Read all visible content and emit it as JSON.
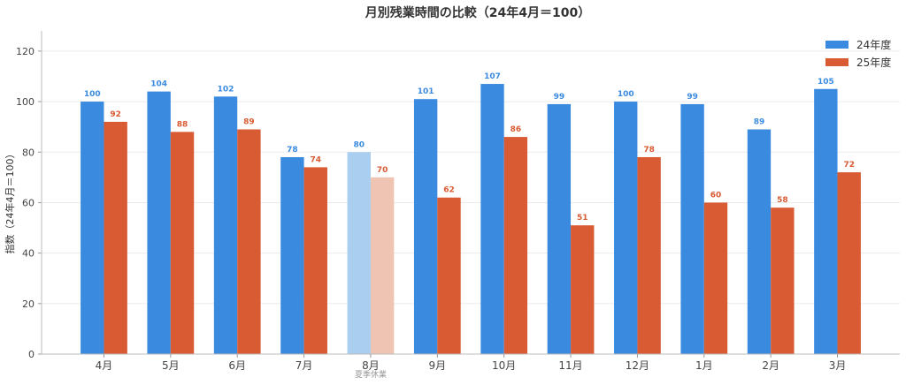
{
  "chart_data": {
    "type": "bar",
    "title": "月別残業時間の比較（24年4月＝100）",
    "xlabel": "",
    "ylabel": "指数（24年4月＝100）",
    "ylim": [
      0,
      128
    ],
    "yticks": [
      0,
      20,
      40,
      60,
      80,
      100,
      120
    ],
    "grid": true,
    "legend_position": "top-right",
    "categories": [
      "4月",
      "5月",
      "6月",
      "7月",
      "8月",
      "9月",
      "10月",
      "11月",
      "12月",
      "1月",
      "2月",
      "3月"
    ],
    "series": [
      {
        "name": "24年度",
        "color": "#3A8BDF",
        "highlight_color": "#A9CEF0",
        "values": [
          100,
          104,
          102,
          78,
          80,
          101,
          107,
          99,
          100,
          99,
          89,
          105
        ]
      },
      {
        "name": "25年度",
        "color": "#D95B33",
        "highlight_color": "#F0C4B2",
        "values": [
          92,
          88,
          89,
          74,
          70,
          62,
          86,
          51,
          78,
          60,
          58,
          72
        ]
      }
    ],
    "highlight_index": 4,
    "annotation": "夏季休業"
  }
}
